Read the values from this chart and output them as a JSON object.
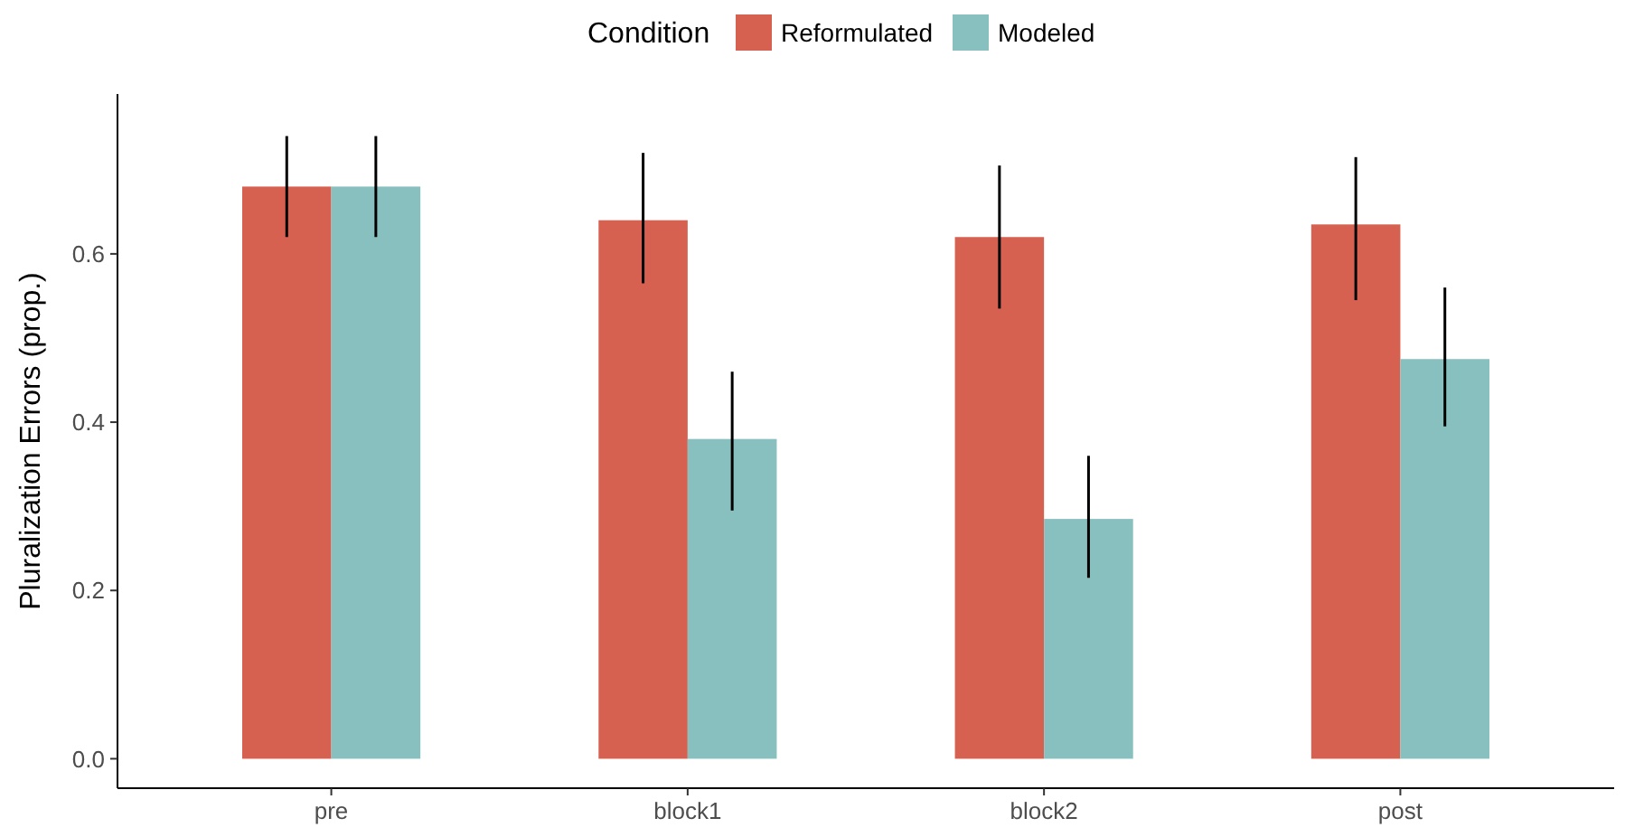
{
  "chart_data": {
    "type": "bar",
    "ylabel": "Pluralization Errors (prop.)",
    "legend_title": "Condition",
    "legend": "top",
    "categories": [
      "pre",
      "block1",
      "block2",
      "post"
    ],
    "series": [
      {
        "name": "Reformulated",
        "color": "#d76150",
        "values": [
          0.68,
          0.64,
          0.62,
          0.635
        ],
        "errors": [
          [
            0.62,
            0.74
          ],
          [
            0.565,
            0.72
          ],
          [
            0.535,
            0.705
          ],
          [
            0.545,
            0.715
          ]
        ]
      },
      {
        "name": "Modeled",
        "color": "#88c0bf",
        "values": [
          0.68,
          0.38,
          0.285,
          0.475
        ],
        "errors": [
          [
            0.62,
            0.74
          ],
          [
            0.295,
            0.46
          ],
          [
            0.215,
            0.36
          ],
          [
            0.395,
            0.56
          ]
        ]
      }
    ],
    "ylim": [
      -0.035,
      0.79
    ],
    "yticks": [
      {
        "value": 0,
        "label": "0.0"
      },
      {
        "value": 0.2,
        "label": "0.2"
      },
      {
        "value": 0.4,
        "label": "0.4"
      },
      {
        "value": 0.6,
        "label": "0.6"
      }
    ],
    "grid": false
  }
}
